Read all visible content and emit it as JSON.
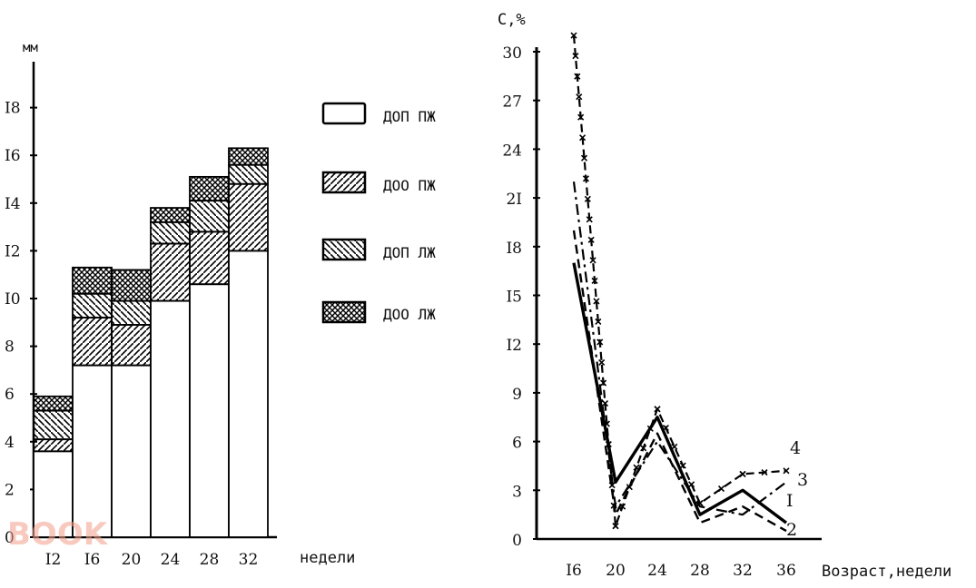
{
  "chart_data": [
    {
      "type": "bar",
      "stacked": true,
      "ylabel": "мм",
      "xlabel": "недели",
      "ylim": [
        0,
        19
      ],
      "yticks": [
        "0",
        "2",
        "4",
        "6",
        "8",
        "I0",
        "I2",
        "I4",
        "I6",
        "I8"
      ],
      "categories": [
        "I2",
        "I6",
        "20",
        "24",
        "28",
        "32"
      ],
      "series": [
        {
          "name": "ДОП ПЖ",
          "pattern": "empty",
          "values": [
            3.6,
            7.2,
            7.2,
            9.9,
            10.6,
            12.0
          ]
        },
        {
          "name": "ДОО ПЖ",
          "pattern": "diag-right",
          "values": [
            0.5,
            2.0,
            1.7,
            2.4,
            2.2,
            2.8
          ]
        },
        {
          "name": "ДОП ЛЖ",
          "pattern": "diag-left",
          "values": [
            1.2,
            1.0,
            1.0,
            0.9,
            1.3,
            0.8
          ]
        },
        {
          "name": "ДОО ЛЖ",
          "pattern": "cross",
          "values": [
            0.6,
            1.1,
            1.3,
            0.6,
            1.0,
            0.7
          ]
        }
      ]
    },
    {
      "type": "line",
      "ylabel": "С,%",
      "xlabel": "Возраст,недели",
      "ylim": [
        0,
        30
      ],
      "yticks": [
        "0",
        "3",
        "6",
        "9",
        "I2",
        "I5",
        "I8",
        "2I",
        "24",
        "27",
        "30"
      ],
      "x": [
        "I6",
        "20",
        "24",
        "28",
        "32",
        "36"
      ],
      "series": [
        {
          "name": "I",
          "style": "solid",
          "values": [
            17,
            3.5,
            7.5,
            1.5,
            3.0,
            1.0
          ]
        },
        {
          "name": "2",
          "style": "dashed",
          "values": [
            19,
            1.5,
            6.5,
            1.0,
            2.0,
            0.5
          ]
        },
        {
          "name": "3",
          "style": "dashdot",
          "values": [
            22,
            2.0,
            6.0,
            2.0,
            1.5,
            3.5
          ]
        },
        {
          "name": "4",
          "style": "cross-dash",
          "values": [
            31,
            0.8,
            8.0,
            2.2,
            4.0,
            4.2
          ]
        }
      ]
    }
  ],
  "watermark": "BOOK"
}
